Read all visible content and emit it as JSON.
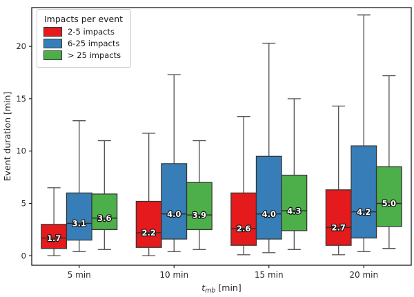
{
  "chart_data": {
    "type": "grouped_boxplot",
    "ylabel": "Event duration [min]",
    "xlabel": {
      "var": "t",
      "sub": "mb",
      "unit": " [min]"
    },
    "categories": [
      "5 min",
      "10 min",
      "15 min",
      "20 min"
    ],
    "yticks": [
      "0",
      "5",
      "10",
      "15",
      "20"
    ],
    "ylim": [
      -0.9,
      23.7
    ],
    "grid": false,
    "legend": {
      "title": "Impacts per event",
      "position": "upper-left",
      "entries": [
        {
          "label": "2-5 impacts",
          "color": "#e41a1c"
        },
        {
          "label": "6-25 impacts",
          "color": "#377eb8"
        },
        {
          "label": "> 25 impacts",
          "color": "#4daf4a"
        }
      ]
    },
    "series": [
      {
        "name": "2-5 impacts",
        "color": "#e41a1c",
        "boxes": [
          {
            "whislo": 0.0,
            "q1": 0.7,
            "med": 1.7,
            "q3": 3.0,
            "whishi": 6.5
          },
          {
            "whislo": 0.0,
            "q1": 0.8,
            "med": 2.2,
            "q3": 5.2,
            "whishi": 11.7
          },
          {
            "whislo": 0.1,
            "q1": 1.0,
            "med": 2.6,
            "q3": 6.0,
            "whishi": 13.3
          },
          {
            "whislo": 0.1,
            "q1": 1.0,
            "med": 2.7,
            "q3": 6.3,
            "whishi": 14.3
          }
        ]
      },
      {
        "name": "6-25 impacts",
        "color": "#377eb8",
        "boxes": [
          {
            "whislo": 0.4,
            "q1": 1.5,
            "med": 3.1,
            "q3": 6.0,
            "whishi": 12.9
          },
          {
            "whislo": 0.4,
            "q1": 1.6,
            "med": 4.0,
            "q3": 8.8,
            "whishi": 17.3
          },
          {
            "whislo": 0.3,
            "q1": 1.6,
            "med": 4.0,
            "q3": 9.5,
            "whishi": 20.3
          },
          {
            "whislo": 0.4,
            "q1": 1.7,
            "med": 4.2,
            "q3": 10.5,
            "whishi": 23.0
          }
        ]
      },
      {
        "name": "> 25 impacts",
        "color": "#4daf4a",
        "boxes": [
          {
            "whislo": 0.6,
            "q1": 2.5,
            "med": 3.6,
            "q3": 5.9,
            "whishi": 11.0
          },
          {
            "whislo": 0.6,
            "q1": 2.5,
            "med": 3.9,
            "q3": 7.0,
            "whishi": 11.0
          },
          {
            "whislo": 0.6,
            "q1": 2.4,
            "med": 4.3,
            "q3": 7.7,
            "whishi": 15.0
          },
          {
            "whislo": 0.7,
            "q1": 2.8,
            "med": 5.0,
            "q3": 8.5,
            "whishi": 17.2
          }
        ]
      }
    ],
    "colors": {
      "background": "#ffffff",
      "spine": "#1a1a1a",
      "box_edge": "#363636",
      "whisker": "#595959",
      "median_line": "#2e2e2e",
      "tick_label": "#262626",
      "median_label_fill": "#ffffff",
      "median_label_outline": "#111111"
    }
  }
}
